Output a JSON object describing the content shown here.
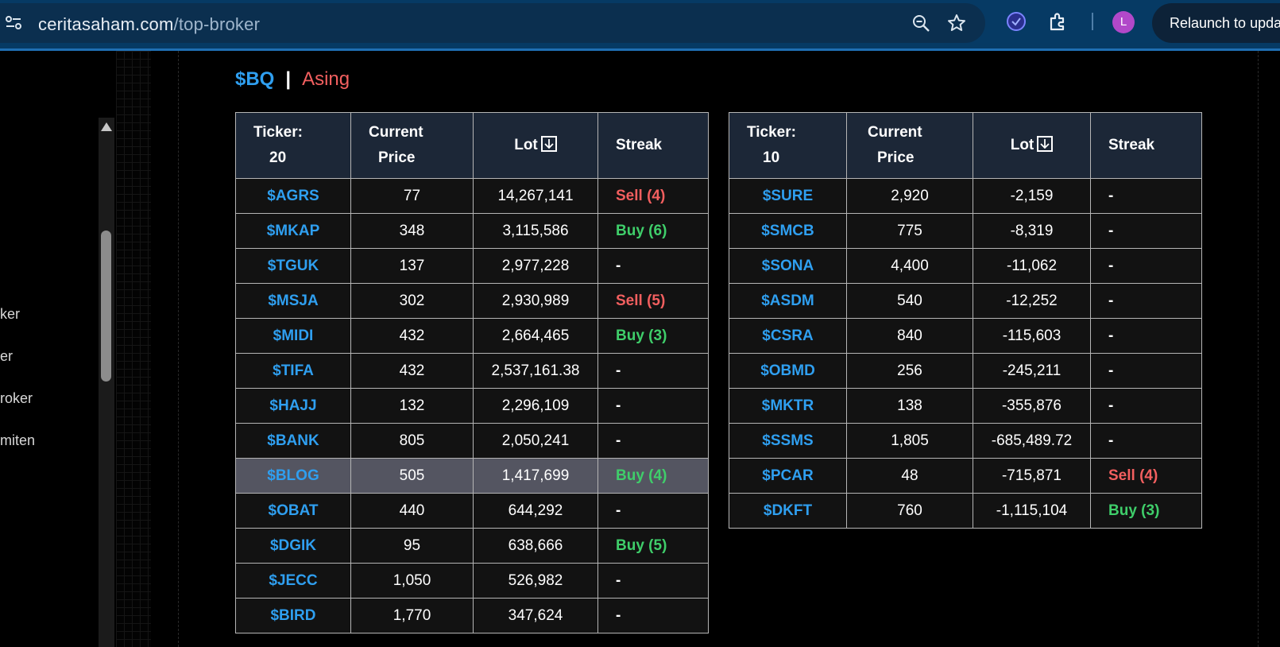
{
  "browser": {
    "url_host": "ceritasaham.com",
    "url_path": "/top-broker",
    "avatar_letter": "L",
    "relaunch_label": "Relaunch to upda"
  },
  "sidebar": {
    "items": [
      "ker",
      "er",
      "roker",
      "miten"
    ]
  },
  "heading": {
    "broker": "$BQ",
    "separator": "|",
    "type": "Asing"
  },
  "colors": {
    "ticker": "#2f9ff0",
    "buy": "#3fce6a",
    "sell": "#f25f5f",
    "header_bg": "#1c2737",
    "highlight_row": "#545561"
  },
  "left_table": {
    "headers": {
      "ticker_label": "Ticker:",
      "ticker_count": "20",
      "price_line1": "Current",
      "price_line2": "Price",
      "lot": "Lot",
      "streak": "Streak"
    },
    "rows": [
      {
        "ticker": "$AGRS",
        "price": "77",
        "lot": "14,267,141",
        "streak": "Sell (4)",
        "kind": "sell"
      },
      {
        "ticker": "$MKAP",
        "price": "348",
        "lot": "3,115,586",
        "streak": "Buy (6)",
        "kind": "buy"
      },
      {
        "ticker": "$TGUK",
        "price": "137",
        "lot": "2,977,228",
        "streak": "-",
        "kind": "neutral"
      },
      {
        "ticker": "$MSJA",
        "price": "302",
        "lot": "2,930,989",
        "streak": "Sell (5)",
        "kind": "sell"
      },
      {
        "ticker": "$MIDI",
        "price": "432",
        "lot": "2,664,465",
        "streak": "Buy (3)",
        "kind": "buy"
      },
      {
        "ticker": "$TIFA",
        "price": "432",
        "lot": "2,537,161.38",
        "streak": "-",
        "kind": "neutral"
      },
      {
        "ticker": "$HAJJ",
        "price": "132",
        "lot": "2,296,109",
        "streak": "-",
        "kind": "neutral"
      },
      {
        "ticker": "$BANK",
        "price": "805",
        "lot": "2,050,241",
        "streak": "-",
        "kind": "neutral"
      },
      {
        "ticker": "$BLOG",
        "price": "505",
        "lot": "1,417,699",
        "streak": "Buy (4)",
        "kind": "buy",
        "highlight": true
      },
      {
        "ticker": "$OBAT",
        "price": "440",
        "lot": "644,292",
        "streak": "-",
        "kind": "neutral"
      },
      {
        "ticker": "$DGIK",
        "price": "95",
        "lot": "638,666",
        "streak": "Buy (5)",
        "kind": "buy"
      },
      {
        "ticker": "$JECC",
        "price": "1,050",
        "lot": "526,982",
        "streak": "-",
        "kind": "neutral"
      },
      {
        "ticker": "$BIRD",
        "price": "1,770",
        "lot": "347,624",
        "streak": "-",
        "kind": "neutral"
      }
    ]
  },
  "right_table": {
    "headers": {
      "ticker_label": "Ticker:",
      "ticker_count": "10",
      "price_line1": "Current",
      "price_line2": "Price",
      "lot": "Lot",
      "streak": "Streak"
    },
    "rows": [
      {
        "ticker": "$SURE",
        "price": "2,920",
        "lot": "-2,159",
        "streak": "-",
        "kind": "neutral"
      },
      {
        "ticker": "$SMCB",
        "price": "775",
        "lot": "-8,319",
        "streak": "-",
        "kind": "neutral"
      },
      {
        "ticker": "$SONA",
        "price": "4,400",
        "lot": "-11,062",
        "streak": "-",
        "kind": "neutral"
      },
      {
        "ticker": "$ASDM",
        "price": "540",
        "lot": "-12,252",
        "streak": "-",
        "kind": "neutral"
      },
      {
        "ticker": "$CSRA",
        "price": "840",
        "lot": "-115,603",
        "streak": "-",
        "kind": "neutral"
      },
      {
        "ticker": "$OBMD",
        "price": "256",
        "lot": "-245,211",
        "streak": "-",
        "kind": "neutral"
      },
      {
        "ticker": "$MKTR",
        "price": "138",
        "lot": "-355,876",
        "streak": "-",
        "kind": "neutral"
      },
      {
        "ticker": "$SSMS",
        "price": "1,805",
        "lot": "-685,489.72",
        "streak": "-",
        "kind": "neutral"
      },
      {
        "ticker": "$PCAR",
        "price": "48",
        "lot": "-715,871",
        "streak": "Sell (4)",
        "kind": "sell"
      },
      {
        "ticker": "$DKFT",
        "price": "760",
        "lot": "-1,115,104",
        "streak": "Buy (3)",
        "kind": "buy"
      }
    ]
  }
}
